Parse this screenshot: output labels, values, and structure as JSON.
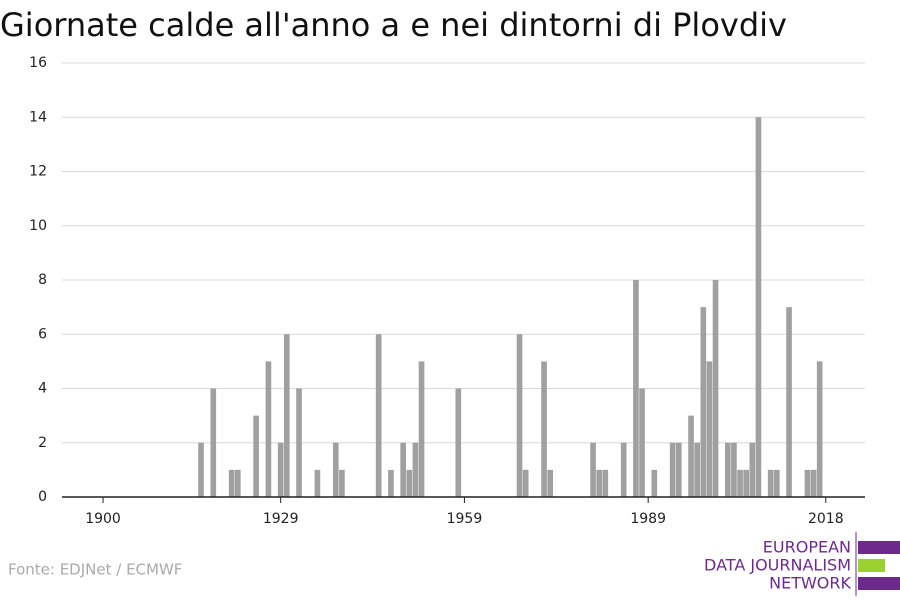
{
  "chart_data": {
    "type": "bar",
    "title": "Giornate calde all'anno a e nei dintorni di Plovdiv",
    "source": "Fonte: EDJNet / ECMWF",
    "x": [
      1916,
      1918,
      1921,
      1922,
      1925,
      1927,
      1929,
      1930,
      1932,
      1935,
      1938,
      1939,
      1945,
      1947,
      1949,
      1950,
      1951,
      1952,
      1958,
      1968,
      1969,
      1972,
      1973,
      1980,
      1981,
      1982,
      1985,
      1987,
      1988,
      1990,
      1993,
      1994,
      1996,
      1997,
      1998,
      1999,
      2000,
      2002,
      2003,
      2004,
      2005,
      2006,
      2007,
      2009,
      2010,
      2012,
      2015,
      2016,
      2017
    ],
    "values": [
      2,
      4,
      1,
      1,
      3,
      5,
      2,
      6,
      4,
      1,
      2,
      1,
      6,
      1,
      2,
      1,
      2,
      5,
      4,
      6,
      1,
      5,
      1,
      2,
      1,
      1,
      2,
      8,
      4,
      1,
      2,
      2,
      3,
      2,
      7,
      5,
      8,
      2,
      2,
      1,
      1,
      2,
      14,
      1,
      1,
      7,
      1,
      1,
      5
    ],
    "color": "#a0a0a0",
    "xlim": [
      1893.3,
      2024.4
    ],
    "xticks": [
      1900,
      1929,
      1959,
      1989,
      2018
    ],
    "ylim": [
      0,
      16
    ],
    "yticks": [
      0,
      2,
      4,
      6,
      8,
      10,
      12,
      14,
      16
    ],
    "grid": true
  },
  "logo": [
    "EUROPEAN",
    "DATA JOURNALISM",
    "NETWORK"
  ]
}
